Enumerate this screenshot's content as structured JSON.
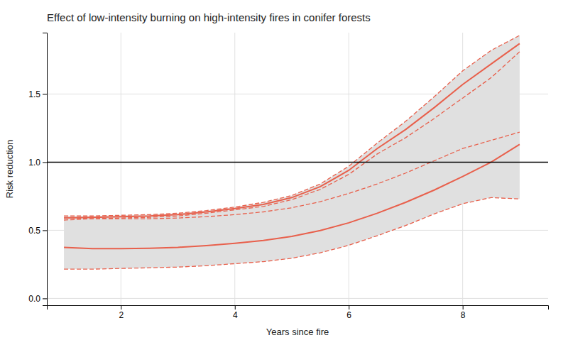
{
  "chart_data": {
    "type": "line",
    "title": "Effect of low-intensity burning on high-intensity fires in conifer forests",
    "xlabel": "Years since fire",
    "ylabel": "Risk reduction",
    "x": [
      1.0,
      1.5,
      2.0,
      2.5,
      3.0,
      3.5,
      4.0,
      4.5,
      5.0,
      5.5,
      6.0,
      6.5,
      7.0,
      7.5,
      8.0,
      8.5,
      9.0
    ],
    "series": [
      {
        "type": "area",
        "color": "#E0E0E0",
        "values": [
          0.605,
          0.605,
          0.61,
          0.615,
          0.625,
          0.645,
          0.67,
          0.705,
          0.755,
          0.84,
          0.97,
          1.14,
          1.3,
          1.48,
          1.67,
          1.82,
          1.93
        ],
        "values_low": [
          0.215,
          0.215,
          0.22,
          0.225,
          0.23,
          0.24,
          0.255,
          0.27,
          0.295,
          0.335,
          0.39,
          0.46,
          0.535,
          0.62,
          0.695,
          0.74,
          0.73
        ]
      },
      {
        "type": "line",
        "color": "#E8604C",
        "line_style": "dashed",
        "values": [
          0.605,
          0.605,
          0.61,
          0.615,
          0.625,
          0.645,
          0.67,
          0.705,
          0.755,
          0.84,
          0.97,
          1.14,
          1.3,
          1.48,
          1.67,
          1.82,
          1.93
        ]
      },
      {
        "type": "line",
        "color": "#E8604C",
        "line_style": "dashed",
        "values": [
          0.575,
          0.585,
          0.59,
          0.595,
          0.605,
          0.625,
          0.65,
          0.675,
          0.725,
          0.8,
          0.91,
          1.06,
          1.18,
          1.32,
          1.47,
          1.62,
          1.81
        ]
      },
      {
        "type": "line",
        "color": "#E8604C",
        "line_style": "dashed",
        "values": [
          0.59,
          0.585,
          0.585,
          0.585,
          0.59,
          0.6,
          0.615,
          0.635,
          0.665,
          0.71,
          0.77,
          0.84,
          0.92,
          1.01,
          1.1,
          1.16,
          1.22
        ]
      },
      {
        "type": "line",
        "color": "#E8604C",
        "line_style": "dashed",
        "values": [
          0.215,
          0.215,
          0.22,
          0.225,
          0.23,
          0.24,
          0.255,
          0.27,
          0.295,
          0.335,
          0.39,
          0.46,
          0.535,
          0.62,
          0.695,
          0.74,
          0.73
        ]
      },
      {
        "type": "line",
        "color": "#E8604C",
        "line_style": "solid",
        "values": [
          0.59,
          0.595,
          0.6,
          0.605,
          0.615,
          0.635,
          0.66,
          0.69,
          0.74,
          0.82,
          0.94,
          1.1,
          1.24,
          1.4,
          1.57,
          1.72,
          1.87
        ]
      },
      {
        "type": "line",
        "color": "#E8604C",
        "line_style": "solid",
        "values": [
          0.375,
          0.365,
          0.365,
          0.368,
          0.375,
          0.388,
          0.405,
          0.425,
          0.455,
          0.498,
          0.555,
          0.625,
          0.705,
          0.795,
          0.895,
          1.0,
          1.13
        ]
      }
    ],
    "hline": {
      "y": 1.0,
      "color": "#000000"
    },
    "xlim": [
      0.7,
      9.5
    ],
    "ylim": [
      -0.05,
      1.95
    ],
    "xticks": [
      2,
      4,
      6,
      8
    ],
    "yticks": [
      {
        "value": 0.0,
        "label": "0.0"
      },
      0.5,
      {
        "value": 1.0,
        "label": "1.0"
      },
      1.5
    ],
    "grid": true
  }
}
